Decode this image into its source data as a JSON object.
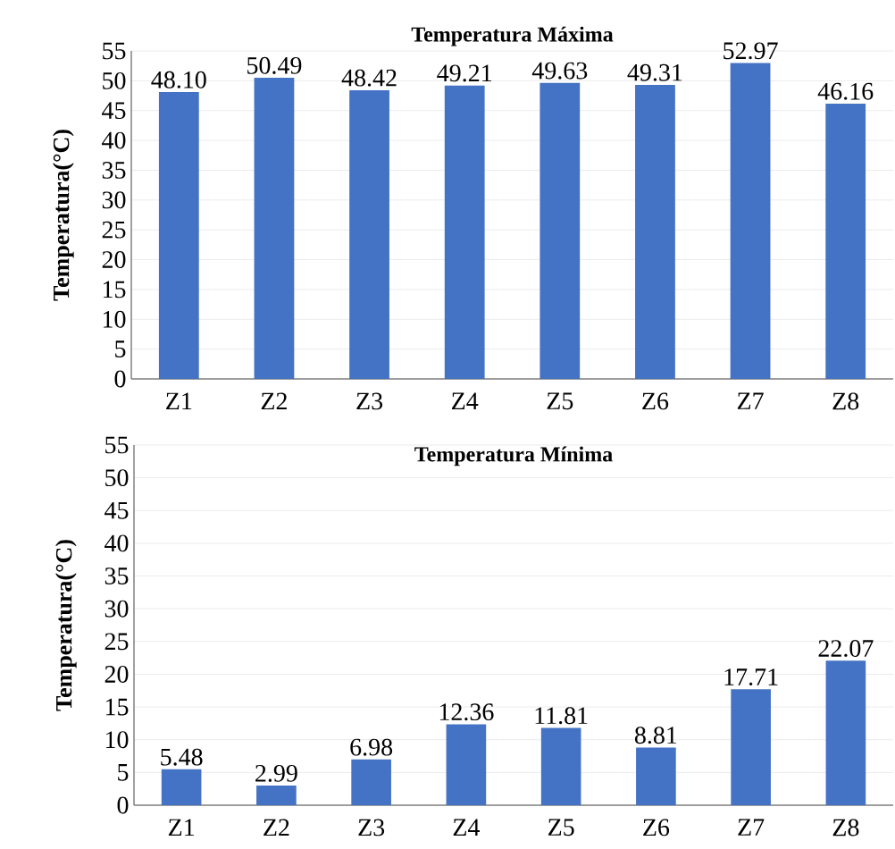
{
  "chart_data": [
    {
      "type": "bar",
      "title": "Temperatura Máxima",
      "ylabel": "Temperatura(°C)",
      "categories": [
        "Z1",
        "Z2",
        "Z3",
        "Z4",
        "Z5",
        "Z6",
        "Z7",
        "Z8"
      ],
      "values": [
        48.1,
        50.49,
        48.42,
        49.21,
        49.63,
        49.31,
        52.97,
        46.16
      ],
      "value_labels": [
        "48.10",
        "50.49",
        "48.42",
        "49.21",
        "49.63",
        "49.31",
        "52.97",
        "46.16"
      ],
      "color": "#4472c4",
      "ylim": [
        0,
        55
      ],
      "yticks": [
        0,
        5,
        10,
        15,
        20,
        25,
        30,
        35,
        40,
        45,
        50,
        55
      ],
      "grid": "y"
    },
    {
      "type": "bar",
      "title": "Temperatura Mínima",
      "ylabel": "Temperatura(°C)",
      "categories": [
        "Z1",
        "Z2",
        "Z3",
        "Z4",
        "Z5",
        "Z6",
        "Z7",
        "Z8"
      ],
      "values": [
        5.48,
        2.99,
        6.98,
        12.36,
        11.81,
        8.81,
        17.71,
        22.07
      ],
      "value_labels": [
        "5.48",
        "2.99",
        "6.98",
        "12.36",
        "11.81",
        "8.81",
        "17.71",
        "22.07"
      ],
      "color": "#4472c4",
      "ylim": [
        0,
        55
      ],
      "yticks": [
        0,
        5,
        10,
        15,
        20,
        25,
        30,
        35,
        40,
        45,
        50,
        55
      ],
      "grid": "y"
    }
  ]
}
